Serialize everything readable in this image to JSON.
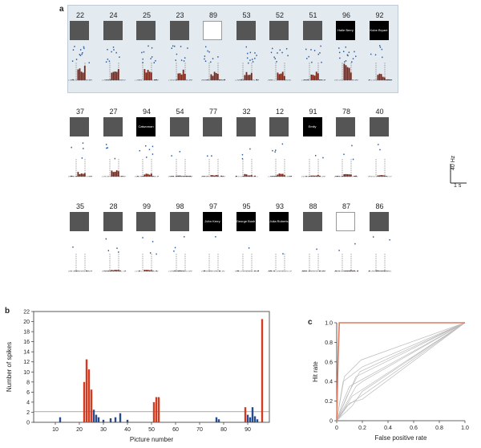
{
  "panel_a": {
    "letter": "a",
    "rows": [
      {
        "cells": [
          {
            "num": "22",
            "pic": "face",
            "dots": 12,
            "bars": 2.6,
            "highlight": true
          },
          {
            "num": "24",
            "pic": "face",
            "dots": 9,
            "bars": 2.2,
            "highlight": true
          },
          {
            "num": "25",
            "pic": "face",
            "dots": 10,
            "bars": 2.0,
            "highlight": true
          },
          {
            "num": "23",
            "pic": "face",
            "dots": 10,
            "bars": 2.4,
            "highlight": true
          },
          {
            "num": "89",
            "pic": "drawing",
            "dots": 9,
            "bars": 1.6,
            "highlight": true
          },
          {
            "num": "53",
            "pic": "face",
            "dots": 11,
            "bars": 1.8,
            "highlight": true
          },
          {
            "num": "52",
            "pic": "face",
            "dots": 10,
            "bars": 1.6,
            "highlight": true
          },
          {
            "num": "51",
            "pic": "face",
            "dots": 10,
            "bars": 1.6,
            "highlight": true
          },
          {
            "num": "96",
            "pic": "text",
            "text": "Halle Berry",
            "dots": 14,
            "bars": 3.0,
            "highlight": true
          },
          {
            "num": "92",
            "pic": "text",
            "text": "Kobe Bryant",
            "dots": 6,
            "bars": 1.2,
            "highlight": false
          }
        ]
      },
      {
        "cells": [
          {
            "num": "37",
            "pic": "face",
            "dots": 4,
            "bars": 1.0
          },
          {
            "num": "27",
            "pic": "face",
            "dots": 4,
            "bars": 1.2
          },
          {
            "num": "94",
            "pic": "text",
            "text": "Catwoman",
            "dots": 6,
            "bars": 0.8
          },
          {
            "num": "54",
            "pic": "face",
            "dots": 2,
            "bars": 0.2
          },
          {
            "num": "77",
            "pic": "face",
            "dots": 2,
            "bars": 0.4
          },
          {
            "num": "32",
            "pic": "face",
            "dots": 3,
            "bars": 0.5
          },
          {
            "num": "12",
            "pic": "face",
            "dots": 4,
            "bars": 0.6
          },
          {
            "num": "91",
            "pic": "text",
            "text": "Emily",
            "dots": 2,
            "bars": 0.3
          },
          {
            "num": "78",
            "pic": "face",
            "dots": 3,
            "bars": 0.5
          },
          {
            "num": "40",
            "pic": "face",
            "dots": 2,
            "bars": 0.4
          }
        ]
      },
      {
        "cells": [
          {
            "num": "35",
            "pic": "face",
            "dots": 1,
            "bars": 0.1
          },
          {
            "num": "28",
            "pic": "face",
            "dots": 4,
            "bars": 0.3
          },
          {
            "num": "99",
            "pic": "face",
            "dots": 4,
            "bars": 0.3
          },
          {
            "num": "98",
            "pic": "face",
            "dots": 3,
            "bars": 0.2
          },
          {
            "num": "97",
            "pic": "text",
            "text": "John Kerry",
            "dots": 1,
            "bars": 0.1
          },
          {
            "num": "95",
            "pic": "text",
            "text": "George Bush",
            "dots": 1,
            "bars": 0.1
          },
          {
            "num": "93",
            "pic": "text",
            "text": "Julia Roberts",
            "dots": 1,
            "bars": 0.1
          },
          {
            "num": "88",
            "pic": "face",
            "dots": 1,
            "bars": 0.1
          },
          {
            "num": "87",
            "pic": "drawing",
            "dots": 2,
            "bars": 0.2
          },
          {
            "num": "86",
            "pic": "face",
            "dots": 2,
            "bars": 0.2
          }
        ]
      }
    ],
    "scale": {
      "y_label": "40 Hz",
      "x_label": "1 s"
    }
  },
  "panel_b": {
    "letter": "b",
    "chart_data": {
      "type": "bar",
      "xlabel": "Picture number",
      "ylabel": "Number of spikes",
      "xlim": [
        1,
        99
      ],
      "ylim": [
        0,
        22
      ],
      "x_ticks": [
        10,
        20,
        30,
        40,
        50,
        60,
        70,
        80,
        90
      ],
      "y_ticks": [
        0,
        2,
        4,
        6,
        8,
        10,
        12,
        14,
        16,
        18,
        20,
        22
      ],
      "threshold": 2.1,
      "colors": {
        "responsive": "#d63a1e",
        "non_responsive": "#2a4c8a"
      },
      "responsive": {
        "x": [
          22,
          23,
          24,
          25,
          51,
          52,
          53,
          89,
          96
        ],
        "values": [
          8,
          12.5,
          10.5,
          6.5,
          4,
          5,
          5,
          3,
          20.5
        ]
      },
      "non_responsive": {
        "x": [
          12,
          26,
          27,
          28,
          30,
          33,
          35,
          37,
          40,
          77,
          78,
          90,
          91,
          92,
          93,
          94
        ],
        "values": [
          1,
          2.5,
          1.5,
          1,
          0.5,
          0.8,
          1,
          1.8,
          0.5,
          1,
          0.6,
          1.5,
          1,
          3,
          1.2,
          0.6
        ]
      }
    }
  },
  "panel_c": {
    "letter": "c",
    "chart_data": {
      "type": "line",
      "xlabel": "False positive rate",
      "ylabel": "Hit rate",
      "xlim": [
        0,
        1
      ],
      "ylim": [
        0,
        1
      ],
      "x_ticks": [
        "0",
        "0.2",
        "0.4",
        "0.6",
        "0.8",
        "1.0"
      ],
      "y_ticks": [
        "0",
        "0.2",
        "0.4",
        "0.6",
        "0.8",
        "1.0"
      ],
      "highlight_color": "#e07a5f",
      "highlight": {
        "x": [
          0,
          0.01,
          0.02,
          1
        ],
        "y": [
          0,
          0.6,
          1.0,
          1.0
        ]
      },
      "others": [
        {
          "x": [
            0,
            0.05,
            0.2,
            1
          ],
          "y": [
            0,
            0.4,
            0.55,
            1
          ]
        },
        {
          "x": [
            0,
            0.1,
            0.15,
            1
          ],
          "y": [
            0,
            0.3,
            0.45,
            1
          ]
        },
        {
          "x": [
            0,
            0.08,
            0.18,
            1
          ],
          "y": [
            0,
            0.25,
            0.5,
            1
          ]
        },
        {
          "x": [
            0,
            0.05,
            0.1,
            1
          ],
          "y": [
            0,
            0.2,
            0.35,
            1
          ]
        },
        {
          "x": [
            0,
            0.12,
            0.2,
            1
          ],
          "y": [
            0,
            0.15,
            0.3,
            1
          ]
        },
        {
          "x": [
            0,
            0.05,
            0.12,
            1
          ],
          "y": [
            0,
            0.1,
            0.25,
            1
          ]
        },
        {
          "x": [
            0,
            0.15,
            0.2,
            1
          ],
          "y": [
            0,
            0.35,
            0.4,
            1
          ]
        },
        {
          "x": [
            0,
            0.06,
            0.19,
            1
          ],
          "y": [
            0,
            0.45,
            0.62,
            1
          ]
        },
        {
          "x": [
            0,
            0.1,
            0.2,
            1
          ],
          "y": [
            0,
            0.18,
            0.22,
            1
          ]
        },
        {
          "x": [
            0,
            0.03,
            0.08,
            1
          ],
          "y": [
            0,
            0.05,
            0.15,
            1
          ]
        }
      ]
    }
  }
}
